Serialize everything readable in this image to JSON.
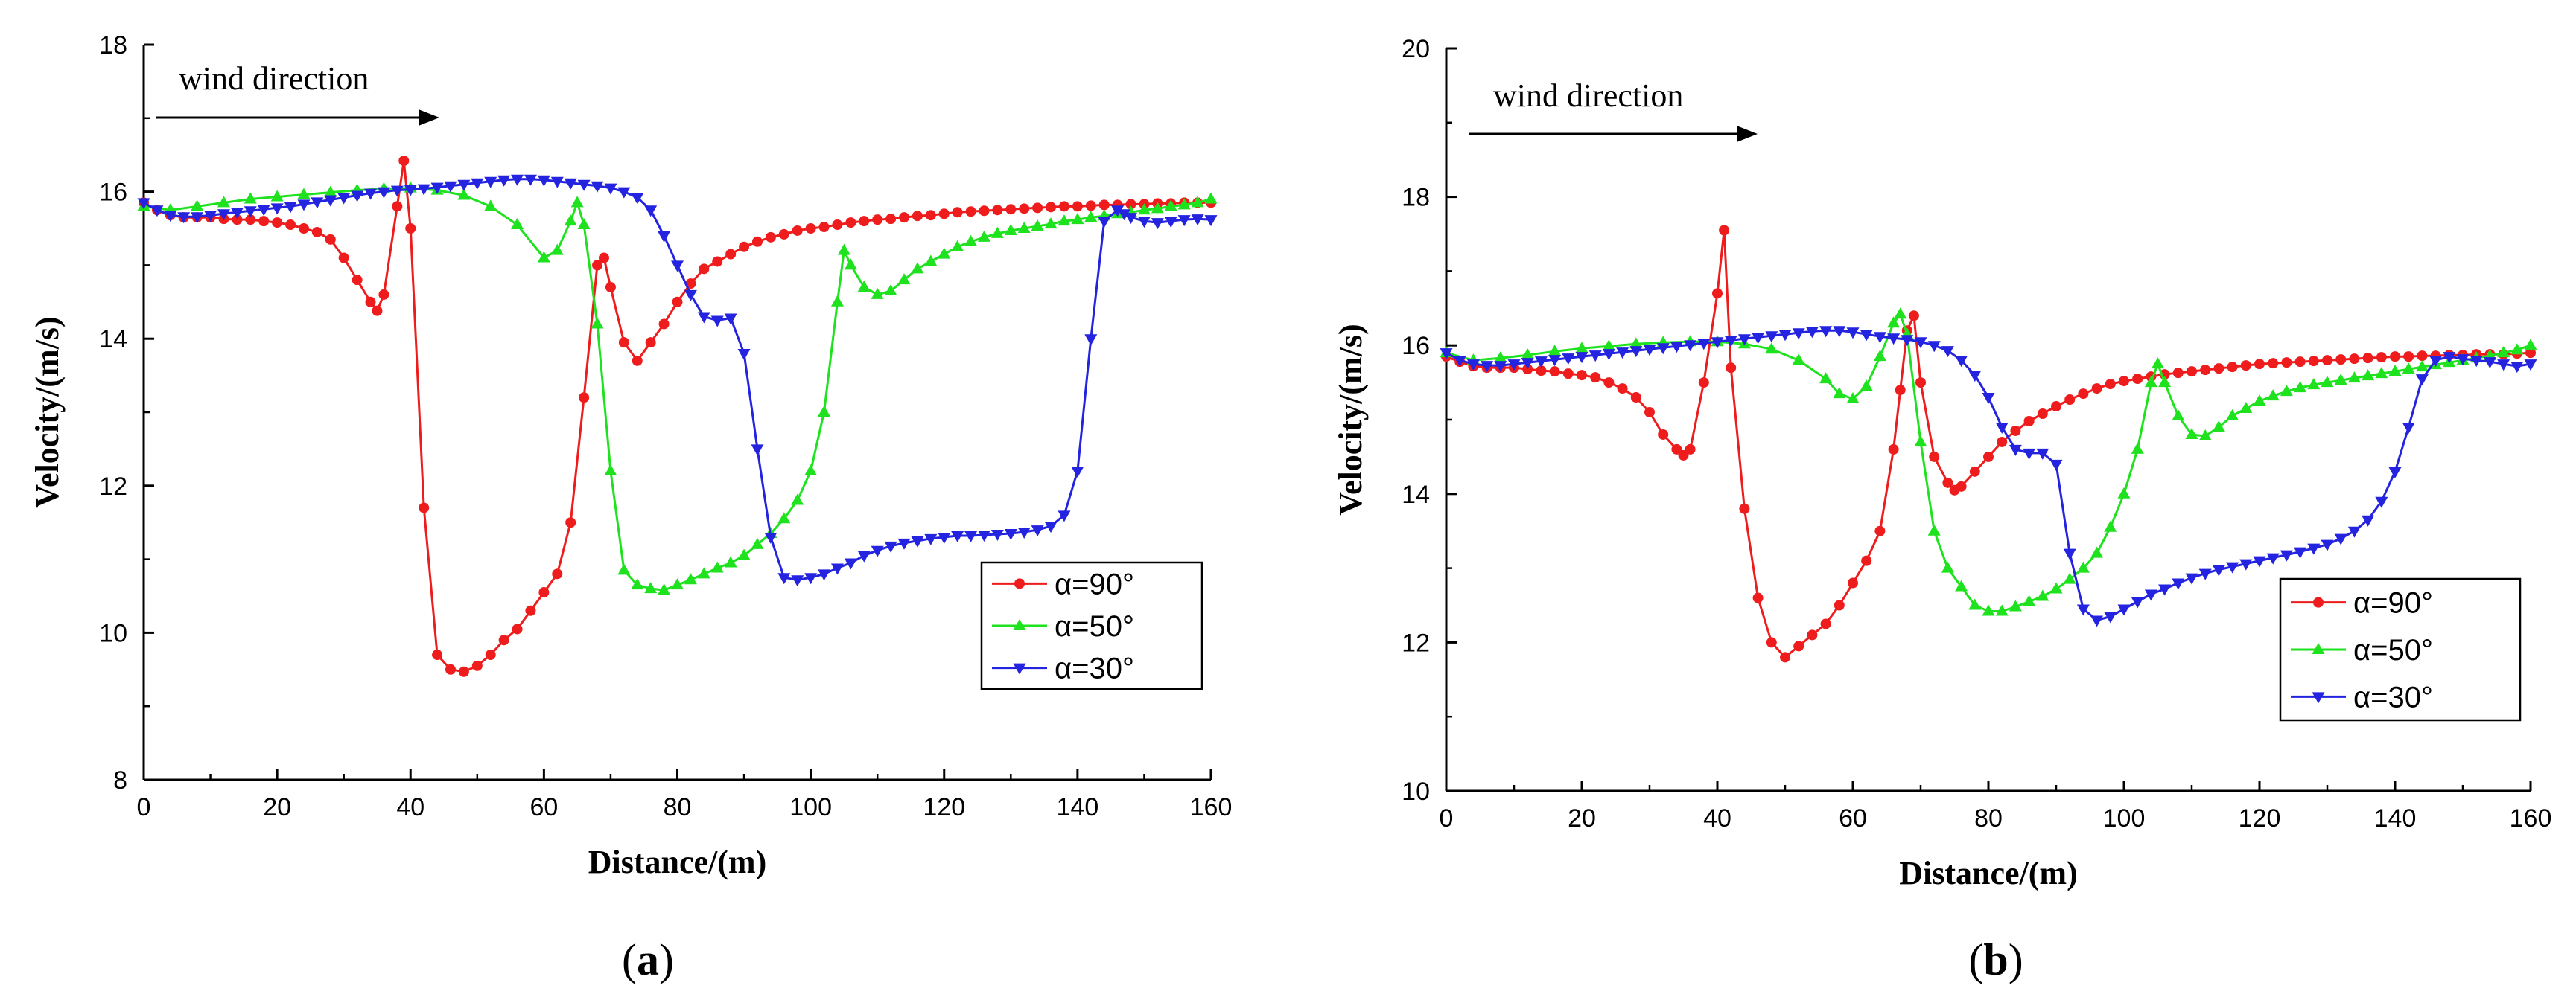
{
  "chart_data": [
    {
      "type": "line",
      "panel_label": "a",
      "xlabel": "Distance/(m)",
      "ylabel": "Velocity/(m/s)",
      "xlim": [
        0,
        160
      ],
      "ylim": [
        8,
        18
      ],
      "xticks": [
        0,
        20,
        40,
        60,
        80,
        100,
        120,
        140,
        160
      ],
      "yticks": [
        8,
        10,
        12,
        14,
        16,
        18
      ],
      "annotation": "wind direction",
      "legend_position": "lower-right",
      "series": [
        {
          "name": "α=90°",
          "color": "#ee1c1c",
          "marker": "circle",
          "x": [
            0,
            2,
            4,
            6,
            8,
            10,
            12,
            14,
            16,
            18,
            20,
            22,
            24,
            26,
            28,
            30,
            32,
            34,
            35,
            36,
            38,
            39,
            40,
            42,
            44,
            46,
            48,
            50,
            52,
            54,
            56,
            58,
            60,
            62,
            64,
            66,
            68,
            69,
            70,
            72,
            74,
            76,
            78,
            80,
            82,
            84,
            86,
            88,
            90,
            92,
            94,
            96,
            98,
            100,
            102,
            104,
            106,
            108,
            110,
            112,
            114,
            116,
            118,
            120,
            122,
            124,
            126,
            128,
            130,
            132,
            134,
            136,
            138,
            140,
            142,
            144,
            146,
            148,
            150,
            152,
            154,
            156,
            158,
            160
          ],
          "y": [
            15.85,
            15.75,
            15.68,
            15.65,
            15.65,
            15.65,
            15.63,
            15.62,
            15.62,
            15.6,
            15.58,
            15.55,
            15.5,
            15.45,
            15.35,
            15.1,
            14.8,
            14.5,
            14.38,
            14.6,
            15.8,
            16.42,
            15.5,
            11.7,
            9.7,
            9.5,
            9.47,
            9.55,
            9.7,
            9.9,
            10.05,
            10.3,
            10.55,
            10.8,
            11.5,
            13.2,
            15.0,
            15.1,
            14.7,
            13.95,
            13.7,
            13.95,
            14.2,
            14.5,
            14.75,
            14.95,
            15.05,
            15.15,
            15.25,
            15.32,
            15.38,
            15.42,
            15.47,
            15.5,
            15.52,
            15.55,
            15.58,
            15.6,
            15.62,
            15.63,
            15.65,
            15.67,
            15.68,
            15.7,
            15.72,
            15.73,
            15.74,
            15.75,
            15.76,
            15.77,
            15.78,
            15.79,
            15.8,
            15.8,
            15.81,
            15.82,
            15.82,
            15.83,
            15.83,
            15.84,
            15.84,
            15.85,
            15.85,
            15.85
          ]
        },
        {
          "name": "α=50°",
          "color": "#1de21d",
          "marker": "triangle-up",
          "x": [
            0,
            4,
            8,
            12,
            16,
            20,
            24,
            28,
            32,
            36,
            40,
            44,
            48,
            52,
            56,
            60,
            62,
            64,
            65,
            66,
            68,
            70,
            72,
            74,
            76,
            78,
            80,
            82,
            84,
            86,
            88,
            90,
            92,
            94,
            96,
            98,
            100,
            102,
            104,
            105,
            106,
            108,
            110,
            112,
            114,
            116,
            118,
            120,
            122,
            124,
            126,
            128,
            130,
            132,
            134,
            136,
            138,
            140,
            142,
            144,
            146,
            148,
            150,
            152,
            154,
            156,
            158,
            160
          ],
          "y": [
            15.8,
            15.75,
            15.8,
            15.85,
            15.9,
            15.93,
            15.96,
            15.99,
            16.02,
            16.04,
            16.05,
            16.02,
            15.95,
            15.8,
            15.55,
            15.1,
            15.2,
            15.6,
            15.85,
            15.55,
            14.2,
            12.2,
            10.85,
            10.65,
            10.6,
            10.58,
            10.65,
            10.72,
            10.8,
            10.88,
            10.95,
            11.05,
            11.2,
            11.35,
            11.55,
            11.8,
            12.2,
            13.0,
            14.5,
            15.2,
            15.0,
            14.7,
            14.6,
            14.65,
            14.8,
            14.95,
            15.05,
            15.15,
            15.25,
            15.32,
            15.38,
            15.43,
            15.47,
            15.5,
            15.53,
            15.56,
            15.6,
            15.62,
            15.65,
            15.67,
            15.7,
            15.72,
            15.75,
            15.77,
            15.8,
            15.82,
            15.85,
            15.9
          ]
        },
        {
          "name": "α=30°",
          "color": "#2323e0",
          "marker": "triangle-down",
          "x": [
            0,
            2,
            4,
            6,
            8,
            10,
            12,
            14,
            16,
            18,
            20,
            22,
            24,
            26,
            28,
            30,
            32,
            34,
            36,
            38,
            40,
            42,
            44,
            46,
            48,
            50,
            52,
            54,
            56,
            58,
            60,
            62,
            64,
            66,
            68,
            70,
            72,
            74,
            76,
            78,
            80,
            82,
            84,
            86,
            88,
            90,
            92,
            94,
            96,
            98,
            100,
            102,
            104,
            106,
            108,
            110,
            112,
            114,
            116,
            118,
            120,
            122,
            124,
            126,
            128,
            130,
            132,
            134,
            136,
            138,
            140,
            142,
            144,
            146,
            147,
            148,
            150,
            152,
            154,
            156,
            158,
            160
          ],
          "y": [
            15.85,
            15.75,
            15.68,
            15.66,
            15.66,
            15.68,
            15.7,
            15.72,
            15.74,
            15.76,
            15.78,
            15.8,
            15.83,
            15.86,
            15.89,
            15.92,
            15.95,
            15.98,
            16.0,
            16.02,
            16.03,
            16.04,
            16.06,
            16.08,
            16.1,
            16.12,
            16.14,
            16.16,
            16.17,
            16.17,
            16.16,
            16.14,
            16.12,
            16.1,
            16.08,
            16.05,
            16.0,
            15.92,
            15.75,
            15.4,
            15.0,
            14.6,
            14.3,
            14.25,
            14.28,
            13.8,
            12.5,
            11.3,
            10.75,
            10.72,
            10.75,
            10.8,
            10.88,
            10.95,
            11.05,
            11.12,
            11.18,
            11.22,
            11.25,
            11.28,
            11.3,
            11.32,
            11.32,
            11.33,
            11.34,
            11.35,
            11.37,
            11.4,
            11.45,
            11.6,
            12.2,
            14.0,
            15.6,
            15.75,
            15.7,
            15.65,
            15.6,
            15.58,
            15.6,
            15.62,
            15.63,
            15.62
          ]
        }
      ]
    },
    {
      "type": "line",
      "panel_label": "b",
      "xlabel": "Distance/(m)",
      "ylabel": "Velocity/(m/s)",
      "xlim": [
        0,
        160
      ],
      "ylim": [
        10,
        20
      ],
      "xticks": [
        0,
        20,
        40,
        60,
        80,
        100,
        120,
        140,
        160
      ],
      "yticks": [
        10,
        12,
        14,
        16,
        18,
        20
      ],
      "annotation": "wind direction",
      "legend_position": "lower-right",
      "series": [
        {
          "name": "α=90°",
          "color": "#ee1c1c",
          "marker": "circle",
          "x": [
            0,
            2,
            4,
            6,
            8,
            10,
            12,
            14,
            16,
            18,
            20,
            22,
            24,
            26,
            28,
            30,
            32,
            34,
            35,
            36,
            38,
            40,
            41,
            42,
            44,
            46,
            48,
            50,
            52,
            54,
            56,
            58,
            60,
            62,
            64,
            66,
            67,
            68,
            69,
            70,
            72,
            74,
            75,
            76,
            78,
            80,
            82,
            84,
            86,
            88,
            90,
            92,
            94,
            96,
            98,
            100,
            102,
            104,
            106,
            108,
            110,
            112,
            114,
            116,
            118,
            120,
            122,
            124,
            126,
            128,
            130,
            132,
            134,
            136,
            138,
            140,
            142,
            144,
            146,
            148,
            150,
            152,
            154,
            156,
            158,
            160
          ],
          "y": [
            15.85,
            15.78,
            15.72,
            15.7,
            15.7,
            15.7,
            15.68,
            15.66,
            15.65,
            15.62,
            15.6,
            15.57,
            15.5,
            15.42,
            15.3,
            15.1,
            14.8,
            14.6,
            14.52,
            14.6,
            15.5,
            16.7,
            17.55,
            15.7,
            13.8,
            12.6,
            12.0,
            11.8,
            11.95,
            12.1,
            12.25,
            12.5,
            12.8,
            13.1,
            13.5,
            14.6,
            15.4,
            16.2,
            16.4,
            15.5,
            14.5,
            14.15,
            14.05,
            14.1,
            14.3,
            14.5,
            14.7,
            14.85,
            14.98,
            15.08,
            15.18,
            15.27,
            15.35,
            15.42,
            15.48,
            15.52,
            15.55,
            15.58,
            15.61,
            15.63,
            15.65,
            15.67,
            15.69,
            15.71,
            15.73,
            15.75,
            15.76,
            15.77,
            15.78,
            15.79,
            15.8,
            15.81,
            15.82,
            15.83,
            15.84,
            15.85,
            15.85,
            15.86,
            15.86,
            15.87,
            15.87,
            15.88,
            15.88,
            15.88,
            15.89,
            15.9
          ]
        },
        {
          "name": "α=50°",
          "color": "#1de21d",
          "marker": "triangle-up",
          "x": [
            0,
            4,
            8,
            12,
            16,
            20,
            24,
            28,
            32,
            36,
            40,
            44,
            48,
            52,
            56,
            58,
            60,
            62,
            64,
            66,
            67,
            68,
            70,
            72,
            74,
            76,
            78,
            80,
            82,
            84,
            86,
            88,
            90,
            92,
            94,
            96,
            98,
            100,
            102,
            104,
            105,
            106,
            108,
            110,
            112,
            114,
            116,
            118,
            120,
            122,
            124,
            126,
            128,
            130,
            132,
            134,
            136,
            138,
            140,
            142,
            144,
            146,
            148,
            150,
            152,
            154,
            156,
            158,
            160
          ],
          "y": [
            15.9,
            15.8,
            15.83,
            15.87,
            15.92,
            15.96,
            15.99,
            16.02,
            16.04,
            16.05,
            16.05,
            16.02,
            15.95,
            15.8,
            15.55,
            15.35,
            15.28,
            15.45,
            15.85,
            16.3,
            16.42,
            16.15,
            14.7,
            13.5,
            13.0,
            12.75,
            12.5,
            12.42,
            12.42,
            12.48,
            12.55,
            12.62,
            12.72,
            12.85,
            13.0,
            13.2,
            13.55,
            14.0,
            14.6,
            15.5,
            15.75,
            15.5,
            15.05,
            14.8,
            14.78,
            14.9,
            15.05,
            15.15,
            15.25,
            15.32,
            15.38,
            15.43,
            15.47,
            15.5,
            15.53,
            15.56,
            15.59,
            15.62,
            15.65,
            15.68,
            15.71,
            15.74,
            15.77,
            15.8,
            15.83,
            15.86,
            15.9,
            15.94,
            16.0
          ]
        },
        {
          "name": "α=30°",
          "color": "#2323e0",
          "marker": "triangle-down",
          "x": [
            0,
            2,
            4,
            6,
            8,
            10,
            12,
            14,
            16,
            18,
            20,
            22,
            24,
            26,
            28,
            30,
            32,
            34,
            36,
            38,
            40,
            42,
            44,
            46,
            48,
            50,
            52,
            54,
            56,
            58,
            60,
            62,
            64,
            66,
            68,
            70,
            72,
            74,
            76,
            78,
            80,
            82,
            84,
            86,
            88,
            90,
            92,
            94,
            96,
            98,
            100,
            102,
            104,
            106,
            108,
            110,
            112,
            114,
            116,
            118,
            120,
            122,
            124,
            126,
            128,
            130,
            132,
            134,
            136,
            138,
            140,
            142,
            144,
            146,
            148,
            150,
            152,
            154,
            156,
            158,
            160
          ],
          "y": [
            15.9,
            15.8,
            15.75,
            15.73,
            15.73,
            15.75,
            15.77,
            15.79,
            15.81,
            15.83,
            15.85,
            15.87,
            15.89,
            15.91,
            15.93,
            15.95,
            15.97,
            15.99,
            16.01,
            16.03,
            16.05,
            16.07,
            16.09,
            16.11,
            16.13,
            16.15,
            16.17,
            16.19,
            16.2,
            16.2,
            16.18,
            16.15,
            16.12,
            16.1,
            16.08,
            16.05,
            16.0,
            15.93,
            15.8,
            15.6,
            15.3,
            14.9,
            14.6,
            14.55,
            14.55,
            14.4,
            13.2,
            12.45,
            12.3,
            12.35,
            12.45,
            12.55,
            12.65,
            12.72,
            12.8,
            12.87,
            12.93,
            12.98,
            13.02,
            13.06,
            13.1,
            13.14,
            13.18,
            13.22,
            13.27,
            13.32,
            13.4,
            13.5,
            13.65,
            13.9,
            14.3,
            14.9,
            15.55,
            15.8,
            15.85,
            15.82,
            15.8,
            15.78,
            15.75,
            15.72,
            15.75
          ]
        }
      ]
    }
  ]
}
